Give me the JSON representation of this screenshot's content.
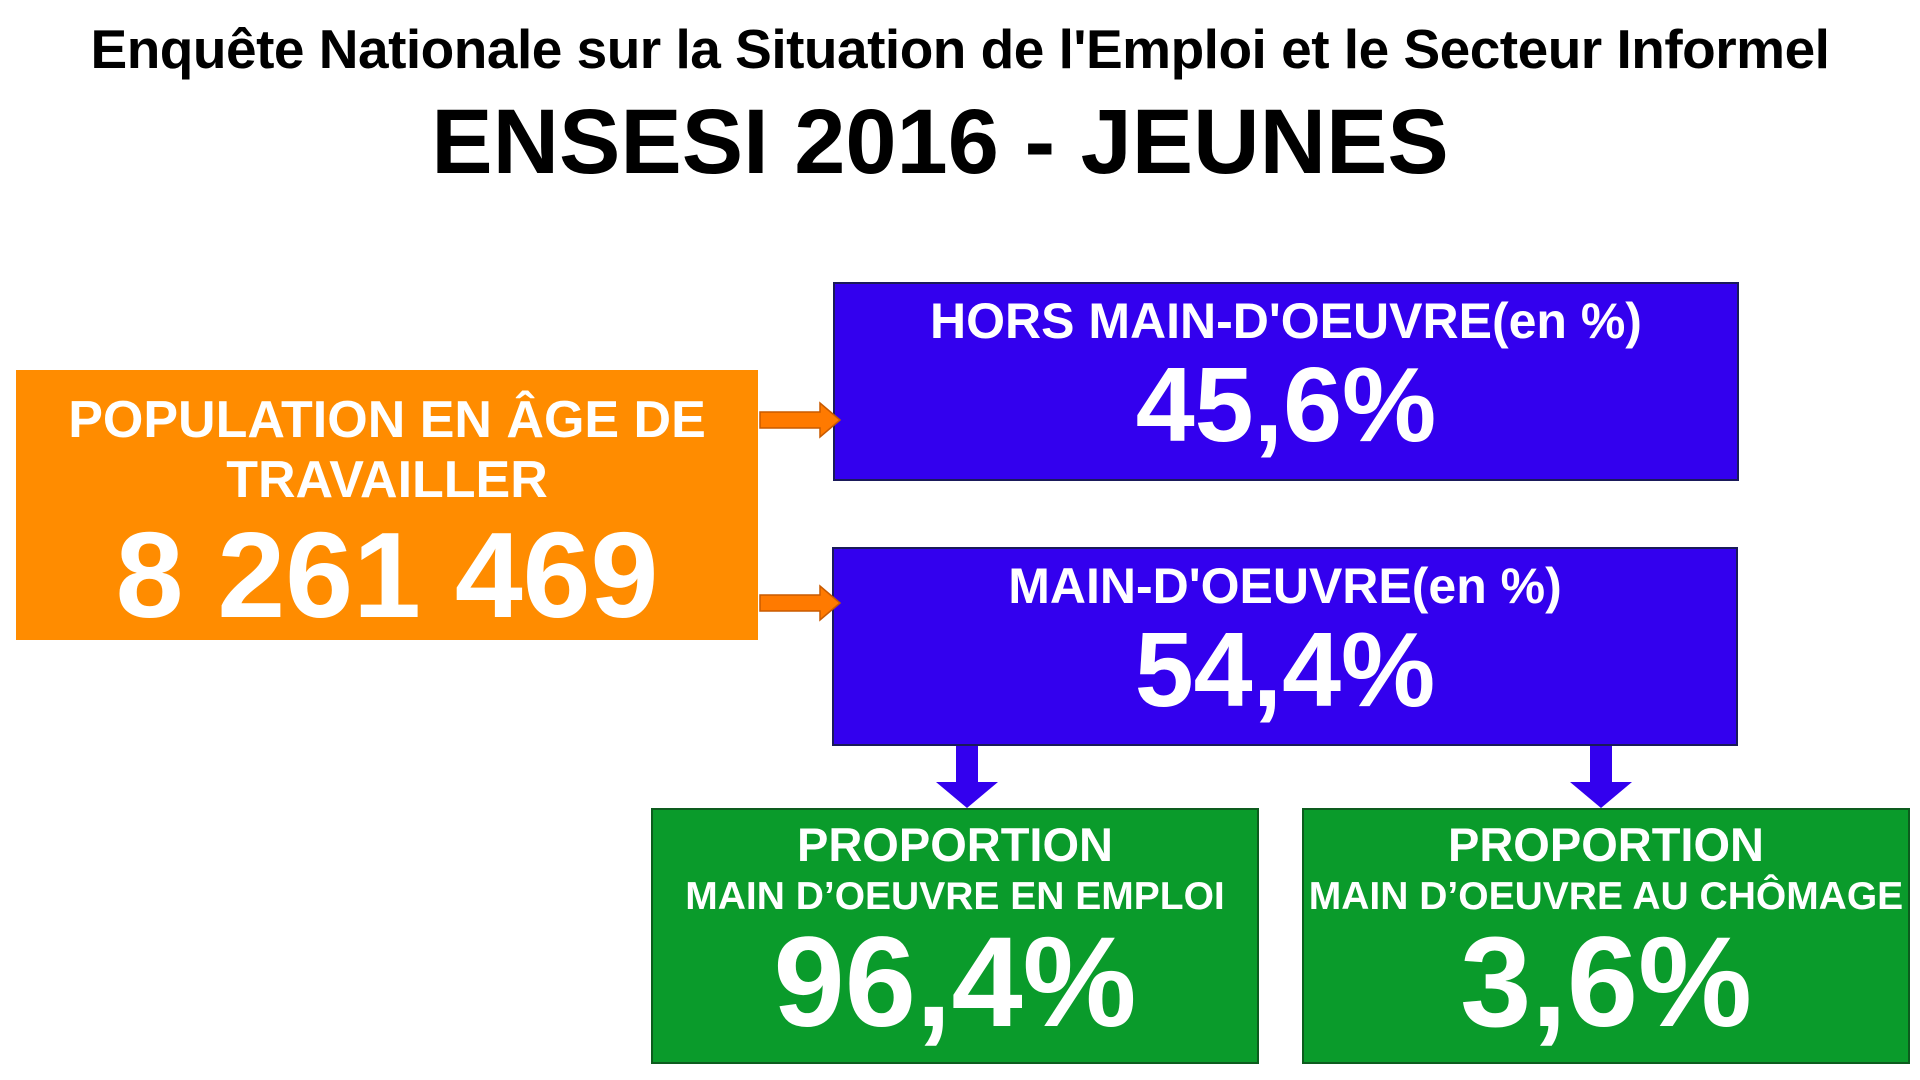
{
  "title": {
    "line1": "Enquête Nationale sur la Situation de l'Emploi et le Secteur Informel",
    "line2": "ENSESI 2016 - JEUNES"
  },
  "population": {
    "label_line1": "POPULATION EN ÂGE DE",
    "label_line2": "TRAVAILLER",
    "value": "8 261 469"
  },
  "hors_main_oeuvre": {
    "label": "HORS MAIN-D'OEUVRE(en %)",
    "value": "45,6%"
  },
  "main_oeuvre": {
    "label": "MAIN-D'OEUVRE(en %)",
    "value": "54,4%"
  },
  "emploi": {
    "label_line1": "PROPORTION",
    "label_line2": "MAIN D’OEUVRE EN EMPLOI",
    "value": "96,4%"
  },
  "chomage": {
    "label_line1": "PROPORTION",
    "label_line2": "MAIN D’OEUVRE AU CHÔMAGE",
    "value": "3,6%"
  },
  "colors": {
    "orange": "#ff8c00",
    "blue": "#3300ee",
    "green": "#0a9b2b",
    "arrow_orange": "#ff7a00",
    "arrow_blue": "#3300ee"
  }
}
